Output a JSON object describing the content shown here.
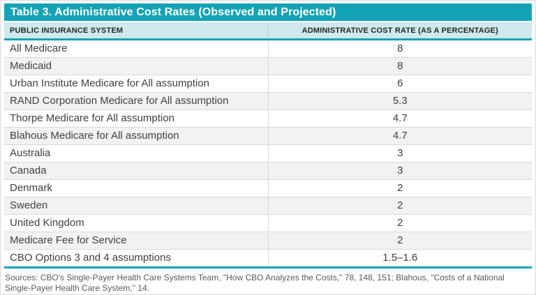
{
  "colors": {
    "accent": "#14a3b5",
    "header_bg": "#cfe9ec",
    "alt_row": "#f2f2f3",
    "row_border": "#d9d9d9",
    "title_text": "#ffffff",
    "header_text": "#232528",
    "body_text": "#414042",
    "footer_text": "#58595b"
  },
  "table": {
    "title": "Table 3. Administrative Cost Rates (Observed and Projected)",
    "columns": [
      "PUBLIC INSURANCE SYSTEM",
      "ADMINISTRATIVE COST RATE (AS A PERCENTAGE)"
    ],
    "rows": [
      {
        "system": "All Medicare",
        "rate": "8"
      },
      {
        "system": "Medicaid",
        "rate": "8"
      },
      {
        "system": "Urban Institute Medicare for All assumption",
        "rate": "6"
      },
      {
        "system": "RAND Corporation Medicare for All assumption",
        "rate": "5.3"
      },
      {
        "system": "Thorpe Medicare for All assumption",
        "rate": "4.7"
      },
      {
        "system": "Blahous Medicare for All assumption",
        "rate": "4.7"
      },
      {
        "system": "Australia",
        "rate": "3"
      },
      {
        "system": "Canada",
        "rate": "3"
      },
      {
        "system": "Denmark",
        "rate": "2"
      },
      {
        "system": "Sweden",
        "rate": "2"
      },
      {
        "system": "United Kingdom",
        "rate": "2"
      },
      {
        "system": "Medicare Fee for Service",
        "rate": "2"
      },
      {
        "system": "CBO Options 3 and 4 assumptions",
        "rate": "1.5–1.6"
      }
    ]
  },
  "footer": {
    "sources": "Sources: CBO's Single-Payer Health Care Systems Team, \"How CBO Analyzes the Costs,\" 78, 148, 151; Blahous, \"Costs of a National Single-Payer Health Care System,\" 14."
  }
}
